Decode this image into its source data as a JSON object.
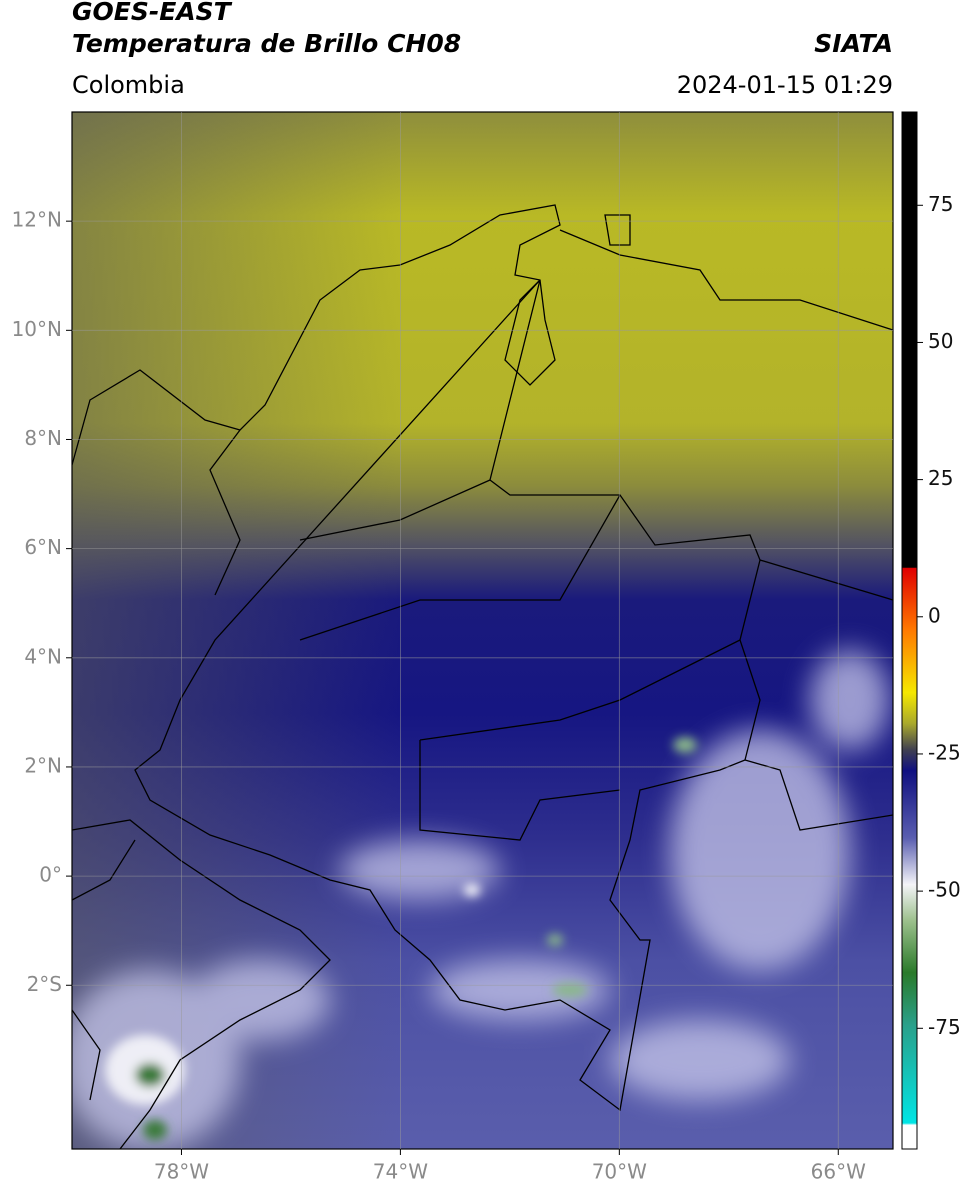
{
  "header": {
    "satellite": "GOES-EAST",
    "product": "Temperatura de Brillo CH08",
    "source": "SIATA",
    "region": "Colombia",
    "timestamp": "2024-01-15 01:29"
  },
  "map": {
    "xlim": [
      -80,
      -65
    ],
    "ylim": [
      -5,
      14
    ],
    "xticks": [
      {
        "value": -78,
        "label": "78°W"
      },
      {
        "value": -74,
        "label": "74°W"
      },
      {
        "value": -70,
        "label": "70°W"
      },
      {
        "value": -66,
        "label": "66°W"
      }
    ],
    "yticks": [
      {
        "value": 12,
        "label": "12°N"
      },
      {
        "value": 10,
        "label": "10°N"
      },
      {
        "value": 8,
        "label": "8°N"
      },
      {
        "value": 6,
        "label": "6°N"
      },
      {
        "value": 4,
        "label": "4°N"
      },
      {
        "value": 2,
        "label": "2°N"
      },
      {
        "value": 0,
        "label": "0°"
      },
      {
        "value": -2,
        "label": "2°S"
      }
    ],
    "grid": true
  },
  "colorbar": {
    "lim": [
      -97,
      92
    ],
    "ticks": [
      75,
      50,
      25,
      0,
      -25,
      -50,
      -75
    ]
  }
}
